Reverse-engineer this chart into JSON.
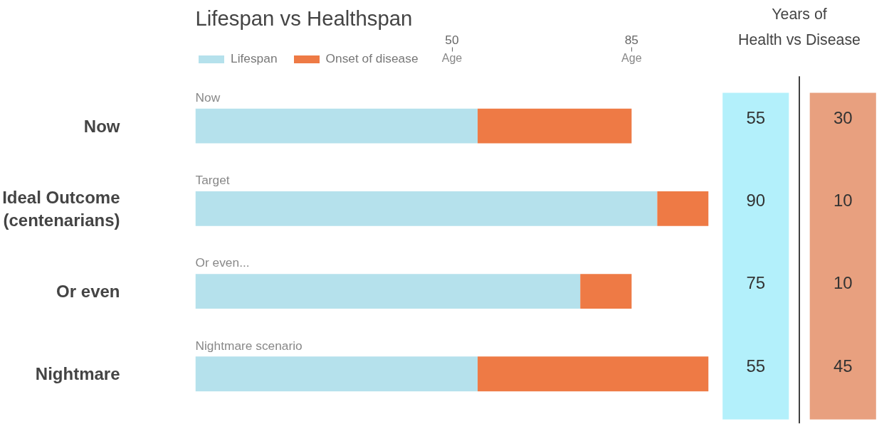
{
  "chart_data": {
    "type": "bar",
    "orientation": "horizontal",
    "stacked": true,
    "title": "Lifespan vs Healthspan",
    "categories": [
      "Now",
      "Ideal Outcome\n(centenarians)",
      "Or even",
      "Nightmare"
    ],
    "series": [
      {
        "name": "Lifespan",
        "color": "#b5e1ec",
        "values": [
          55,
          90,
          75,
          55
        ]
      },
      {
        "name": "Onset of disease",
        "color": "#ee7a45",
        "values": [
          30,
          10,
          10,
          45
        ]
      }
    ],
    "colors": [
      "#b3f0fb",
      "#e8a07f"
    ],
    "xlim": [
      0,
      100
    ],
    "xticks": [
      50,
      85
    ],
    "annotations": [
      "Now",
      "Target",
      "Or even...",
      "Nightmare scenario",
      "Years of",
      "Health vs Disease",
      "Age",
      "Age"
    ],
    "data_labels": true,
    "legend": "top left",
    "grid": false
  }
}
